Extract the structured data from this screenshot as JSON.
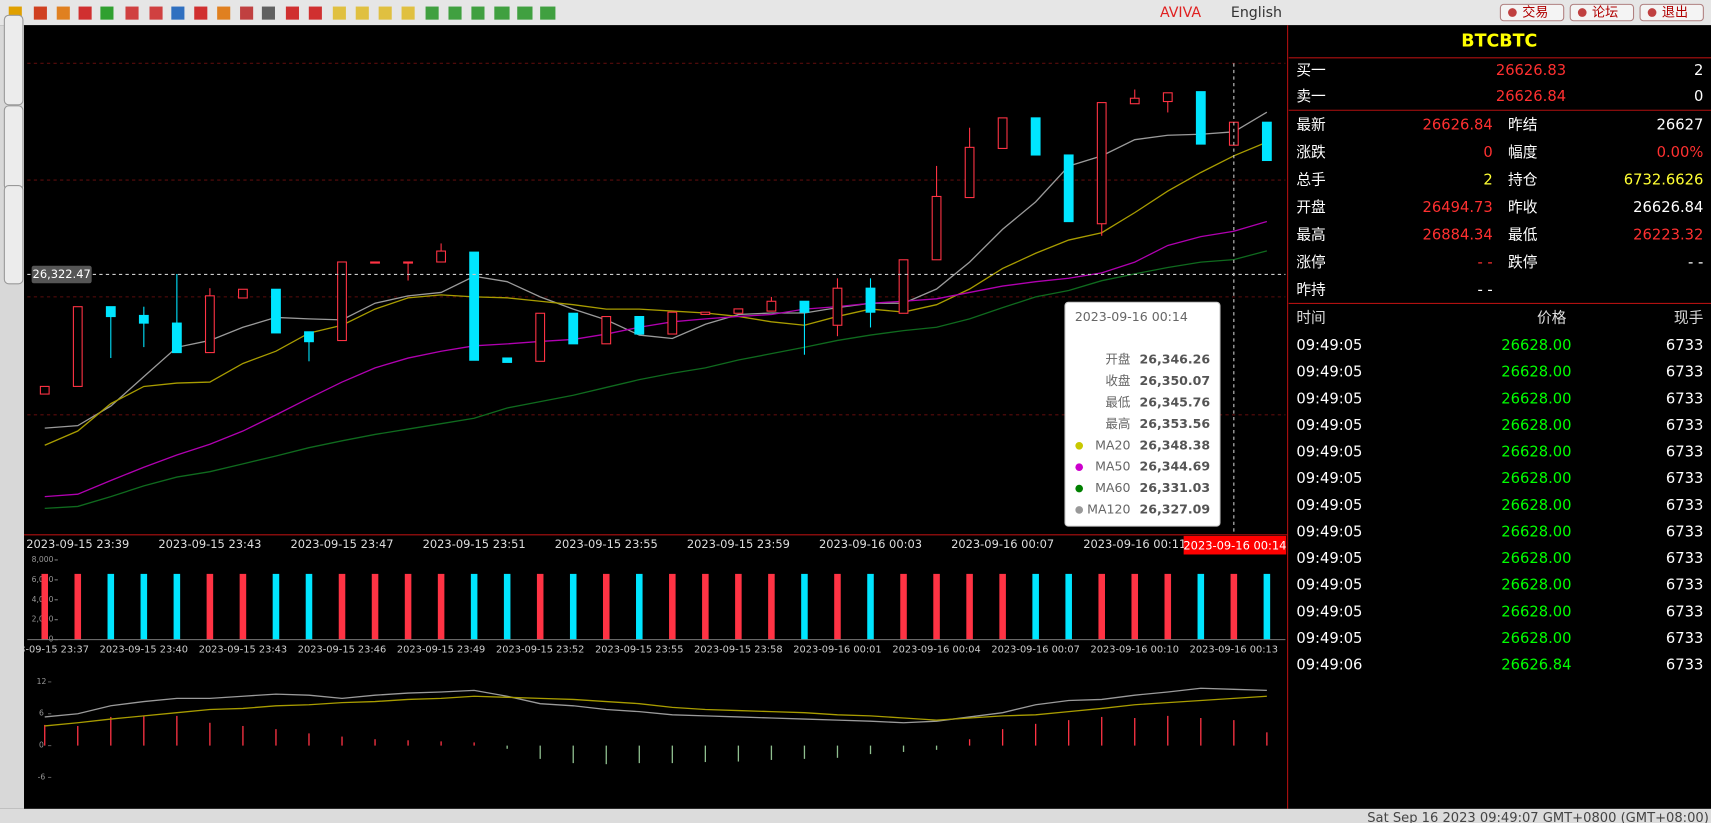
{
  "toolbar": {
    "brand": "AVIVA",
    "language": "English",
    "buttons": [
      "交易",
      "论坛",
      "退出"
    ]
  },
  "status_bar": "Sat Sep 16 2023 09:49:07 GMT+0800 (GMT+08:00)",
  "quote": {
    "symbol": "BTCBTC",
    "book": [
      {
        "label": "买一",
        "price": "26626.83",
        "qty": "2"
      },
      {
        "label": "卖一",
        "price": "26626.84",
        "qty": "0"
      }
    ],
    "stats": [
      [
        {
          "text": "最新"
        },
        {
          "text": "26626.84",
          "color": "#ff3030"
        },
        {
          "text": "昨结"
        },
        {
          "text": "26627",
          "color": "#ffffff"
        }
      ],
      [
        {
          "text": "涨跌"
        },
        {
          "text": "0",
          "color": "#ff3030"
        },
        {
          "text": "幅度"
        },
        {
          "text": "0.00%",
          "color": "#ff3030"
        }
      ],
      [
        {
          "text": "总手"
        },
        {
          "text": "2",
          "color": "#ffff33"
        },
        {
          "text": "持仓"
        },
        {
          "text": "6732.6626",
          "color": "#ffff33"
        }
      ],
      [
        {
          "text": "开盘"
        },
        {
          "text": "26494.73",
          "color": "#ff3030"
        },
        {
          "text": "昨收"
        },
        {
          "text": "26626.84",
          "color": "#ffffff"
        }
      ],
      [
        {
          "text": "最高"
        },
        {
          "text": "26884.34",
          "color": "#ff3030"
        },
        {
          "text": "最低"
        },
        {
          "text": "26223.32",
          "color": "#ff3030"
        }
      ],
      [
        {
          "text": "涨停"
        },
        {
          "text": "- -",
          "color": "#ff3030"
        },
        {
          "text": "跌停"
        },
        {
          "text": "- -",
          "color": "#ffffff"
        }
      ],
      [
        {
          "text": "昨持"
        },
        {
          "text": "- -",
          "color": "#ffffff"
        }
      ]
    ]
  },
  "trades": {
    "headers": [
      "时间",
      "价格",
      "现手"
    ],
    "rows": [
      [
        "09:49:05",
        "26628.00",
        "6733"
      ],
      [
        "09:49:05",
        "26628.00",
        "6733"
      ],
      [
        "09:49:05",
        "26628.00",
        "6733"
      ],
      [
        "09:49:05",
        "26628.00",
        "6733"
      ],
      [
        "09:49:05",
        "26628.00",
        "6733"
      ],
      [
        "09:49:05",
        "26628.00",
        "6733"
      ],
      [
        "09:49:05",
        "26628.00",
        "6733"
      ],
      [
        "09:49:05",
        "26628.00",
        "6733"
      ],
      [
        "09:49:05",
        "26628.00",
        "6733"
      ],
      [
        "09:49:05",
        "26628.00",
        "6733"
      ],
      [
        "09:49:05",
        "26628.00",
        "6733"
      ],
      [
        "09:49:05",
        "26628.00",
        "6733"
      ],
      [
        "09:49:06",
        "26626.84",
        "6733"
      ]
    ]
  },
  "tooltip": {
    "title": "2023-09-16 00:14",
    "rows": [
      {
        "label": "开盘",
        "value": "26,346.26"
      },
      {
        "label": "收盘",
        "value": "26,350.07"
      },
      {
        "label": "最低",
        "value": "26,345.76"
      },
      {
        "label": "最高",
        "value": "26,353.56"
      },
      {
        "label": "MA20",
        "value": "26,348.38",
        "color": "#c8c800"
      },
      {
        "label": "MA50",
        "value": "26,344.69",
        "color": "#cc00cc"
      },
      {
        "label": "MA60",
        "value": "26,331.03",
        "color": "#008000"
      },
      {
        "label": "MA120",
        "value": "26,327.09",
        "color": "#999999"
      }
    ]
  },
  "crosshair": {
    "x_label": "2023-09-16 00:14",
    "y_label": "26,322.47",
    "y": 26322.47
  },
  "chart_data": [
    {
      "type": "candlestick",
      "ylim": [
        26269.3,
        26372.95
      ],
      "up_color": "#ff3344",
      "down_color": "#00e5ff",
      "categories": [
        null,
        "2023-09-15 23:39",
        null,
        null,
        null,
        "2023-09-15 23:43",
        null,
        null,
        null,
        "2023-09-15 23:47",
        null,
        null,
        null,
        "2023-09-15 23:51",
        null,
        null,
        null,
        "2023-09-15 23:55",
        null,
        null,
        null,
        "2023-09-15 23:59",
        null,
        null,
        null,
        "2023-09-16 00:03",
        null,
        null,
        null,
        "2023-09-16 00:07",
        null,
        null,
        null,
        "2023-09-16 00:11",
        null,
        null,
        null,
        null
      ],
      "open": [
        26298.05,
        26299.61,
        26315.89,
        26314.1,
        26312.54,
        26306.52,
        26317.67,
        26319.45,
        26310.76,
        26308.98,
        26324.8,
        26324.8,
        26325.02,
        26327.03,
        26305.41,
        26304.74,
        26314.55,
        26308.31,
        26313.88,
        26310.31,
        26314.32,
        26314.55,
        26314.99,
        26317.0,
        26312.1,
        26319.67,
        26314.55,
        26325.47,
        26338.18,
        26348.21,
        26354.45,
        26346.87,
        26332.83,
        26357.34,
        26357.79,
        26359.8,
        26348.87,
        26353.56
      ],
      "high": [
        26299.61,
        26315.89,
        26315.89,
        26315.89,
        26322.57,
        26319.67,
        26319.45,
        26319.45,
        26310.76,
        26325.02,
        26325.02,
        26325.02,
        26328.81,
        26327.03,
        26305.41,
        26314.55,
        26314.55,
        26313.88,
        26313.88,
        26314.77,
        26314.77,
        26315.44,
        26317.89,
        26317.0,
        26321.68,
        26321.68,
        26325.47,
        26344.64,
        26352.44,
        26354.45,
        26354.45,
        26346.87,
        26357.57,
        26360.24,
        26359.57,
        26359.8,
        26353.56,
        26353.56
      ],
      "low": [
        26298.05,
        26299.61,
        26305.41,
        26307.64,
        26306.52,
        26306.52,
        26317.67,
        26310.54,
        26304.74,
        26308.98,
        26324.8,
        26321.23,
        26325.02,
        26304.96,
        26304.52,
        26304.74,
        26308.31,
        26308.31,
        26310.31,
        26310.31,
        26314.32,
        26314.55,
        26314.99,
        26306.08,
        26309.87,
        26311.65,
        26314.55,
        26325.47,
        26338.18,
        26348.21,
        26346.87,
        26333.27,
        26330.37,
        26357.34,
        26355.56,
        26349.1,
        26348.87,
        26345.75
      ],
      "close": [
        26299.61,
        26315.89,
        26313.88,
        26312.54,
        26306.52,
        26318.11,
        26319.45,
        26310.54,
        26308.75,
        26325.02,
        26325.02,
        26325.02,
        26327.25,
        26304.96,
        26304.52,
        26314.55,
        26308.31,
        26313.88,
        26310.31,
        26314.77,
        26314.77,
        26315.44,
        26317.0,
        26314.77,
        26319.67,
        26314.77,
        26325.47,
        26338.4,
        26348.43,
        26354.45,
        26346.87,
        26333.27,
        26357.57,
        26358.46,
        26359.57,
        26349.1,
        26353.56,
        26345.75
      ],
      "series": [
        {
          "color": "#9a9a9a",
          "values": [
            26291.1,
            26291.6,
            26295.6,
            26301.6,
            26307.6,
            26309.0,
            26311.7,
            26313.7,
            26313.4,
            26313.2,
            26316.6,
            26318.1,
            26318.8,
            26322.1,
            26321.0,
            26317.9,
            26315.4,
            26313.2,
            26310.1,
            26309.4,
            26312.3,
            26314.3,
            26314.6,
            26314.6,
            26315.7,
            26316.6,
            26316.6,
            26319.5,
            26325.0,
            26331.7,
            26337.3,
            26344.6,
            26346.7,
            26350.0,
            26350.9,
            26351.1,
            26351.6,
            26355.6
          ]
        },
        {
          "color": "#a89c00",
          "values": [
            26287.6,
            26290.5,
            26296.1,
            26299.6,
            26300.3,
            26300.5,
            26304.3,
            26306.8,
            26310.5,
            26312.1,
            26315.4,
            26317.7,
            26318.3,
            26317.9,
            26317.7,
            26317.0,
            26316.3,
            26315.4,
            26315.4,
            26315.0,
            26314.6,
            26313.9,
            26312.8,
            26312.1,
            26313.9,
            26315.4,
            26314.8,
            26316.3,
            26319.5,
            26323.7,
            26326.8,
            26329.5,
            26331.0,
            26335.1,
            26339.5,
            26343.3,
            26346.7,
            26349.5
          ]
        },
        {
          "color": "#b000b0",
          "values": [
            26277.1,
            26277.6,
            26280.4,
            26283.1,
            26285.6,
            26287.8,
            26290.5,
            26293.8,
            26297.2,
            26300.5,
            26303.4,
            26305.4,
            26306.8,
            26307.9,
            26308.3,
            26308.8,
            26309.2,
            26310.3,
            26311.7,
            26312.8,
            26313.4,
            26313.9,
            26314.3,
            26315.4,
            26315.9,
            26316.6,
            26317.0,
            26317.5,
            26318.8,
            26320.1,
            26321.0,
            26321.7,
            26322.8,
            26325.0,
            26328.4,
            26330.2,
            26331.3,
            26333.3
          ]
        },
        {
          "color": "#0f6a1e",
          "values": [
            26274.7,
            26275.1,
            26277.1,
            26279.3,
            26281.1,
            26282.2,
            26283.8,
            26285.4,
            26287.1,
            26288.5,
            26289.8,
            26290.9,
            26292.0,
            26293.1,
            26295.2,
            26296.5,
            26297.8,
            26299.4,
            26301.0,
            26302.3,
            26303.4,
            26305.0,
            26306.3,
            26307.6,
            26309.0,
            26310.1,
            26311.0,
            26311.7,
            26313.4,
            26315.7,
            26317.9,
            26319.2,
            26321.2,
            26322.6,
            26323.9,
            26325.0,
            26325.5,
            26327.3
          ]
        }
      ]
    },
    {
      "type": "bar",
      "ylim": [
        0,
        8000
      ],
      "yticks": [
        {
          "value": 8000,
          "label": "8,000"
        },
        {
          "value": 6000,
          "label": "6,000"
        },
        {
          "value": 4000,
          "label": "4,000"
        },
        {
          "value": 2000,
          "label": "2,000"
        },
        0
      ],
      "categories": [
        "2023-09-15 23:37",
        null,
        null,
        "2023-09-15 23:40",
        null,
        null,
        "2023-09-15 23:43",
        null,
        null,
        "2023-09-15 23:46",
        null,
        null,
        "2023-09-15 23:49",
        null,
        null,
        "2023-09-15 23:52",
        null,
        null,
        "2023-09-15 23:55",
        null,
        null,
        "2023-09-15 23:58",
        null,
        null,
        "2023-09-16 00:01",
        null,
        null,
        "2023-09-16 00:04",
        null,
        null,
        "2023-09-16 00:07",
        null,
        null,
        "2023-09-16 00:10",
        null,
        null,
        "2023-09-16 00:13",
        null
      ],
      "values": [
        6600,
        6600,
        6600,
        6600,
        6600,
        6600,
        6600,
        6600,
        6600,
        6600,
        6600,
        6600,
        6600,
        6600,
        6600,
        6600,
        6600,
        6600,
        6600,
        6600,
        6600,
        6600,
        6600,
        6600,
        6600,
        6600,
        6600,
        6600,
        6600,
        6600,
        6600,
        6600,
        6600,
        6600,
        6600,
        6600,
        6600,
        6600
      ],
      "colors": [
        "#ff3344",
        "#ff3344",
        "#00e5ff",
        "#00e5ff",
        "#00e5ff",
        "#ff3344",
        "#ff3344",
        "#00e5ff",
        "#00e5ff",
        "#ff3344",
        "#ff3344",
        "#ff3344",
        "#ff3344",
        "#00e5ff",
        "#00e5ff",
        "#ff3344",
        "#00e5ff",
        "#ff3344",
        "#00e5ff",
        "#ff3344",
        "#ff3344",
        "#ff3344",
        "#ff3344",
        "#00e5ff",
        "#ff3344",
        "#00e5ff",
        "#ff3344",
        "#ff3344",
        "#ff3344",
        "#ff3344",
        "#00e5ff",
        "#00e5ff",
        "#ff3344",
        "#ff3344",
        "#ff3344",
        "#00e5ff",
        "#ff3344",
        "#00e5ff"
      ]
    },
    {
      "type": "macd",
      "ylim": [
        -8,
        14
      ],
      "yticks": [
        12,
        6,
        0,
        -6
      ],
      "pos_color": "#ff3344",
      "neg_color": "#8fbf8f",
      "values": [
        3.9,
        3.7,
        5.4,
        5.6,
        5.6,
        4.3,
        3.7,
        3.1,
        2.3,
        1.7,
        1.2,
        1.0,
        0.8,
        0.6,
        -0.6,
        -2.5,
        -3.3,
        -3.5,
        -3.3,
        -3.3,
        -3.1,
        -3.0,
        -2.7,
        -2.5,
        -2.3,
        -1.6,
        -1.2,
        -0.8,
        1.2,
        3.1,
        4.1,
        4.8,
        5.4,
        5.2,
        5.6,
        5.2,
        4.8,
        2.5
      ],
      "series": [
        {
          "color": "#9a9a9a",
          "values": [
            5.4,
            6.0,
            7.5,
            8.3,
            8.9,
            8.9,
            9.3,
            9.7,
            9.5,
            8.9,
            9.5,
            9.9,
            10.1,
            10.4,
            9.3,
            7.9,
            7.5,
            6.8,
            6.4,
            5.8,
            5.6,
            5.4,
            5.2,
            5.0,
            4.8,
            4.6,
            4.3,
            4.6,
            5.4,
            6.2,
            7.7,
            8.5,
            8.7,
            9.5,
            10.1,
            10.8,
            10.6,
            10.4
          ]
        },
        {
          "color": "#a89c00",
          "values": [
            3.7,
            4.3,
            5.0,
            5.6,
            6.2,
            6.8,
            7.0,
            7.5,
            7.7,
            8.1,
            8.3,
            8.7,
            8.9,
            9.3,
            9.1,
            8.9,
            8.7,
            8.3,
            7.9,
            7.2,
            6.8,
            6.6,
            6.4,
            6.2,
            5.8,
            5.6,
            5.2,
            4.8,
            5.2,
            5.6,
            5.8,
            6.4,
            7.0,
            7.7,
            8.1,
            8.5,
            8.9,
            9.3
          ]
        }
      ]
    }
  ]
}
